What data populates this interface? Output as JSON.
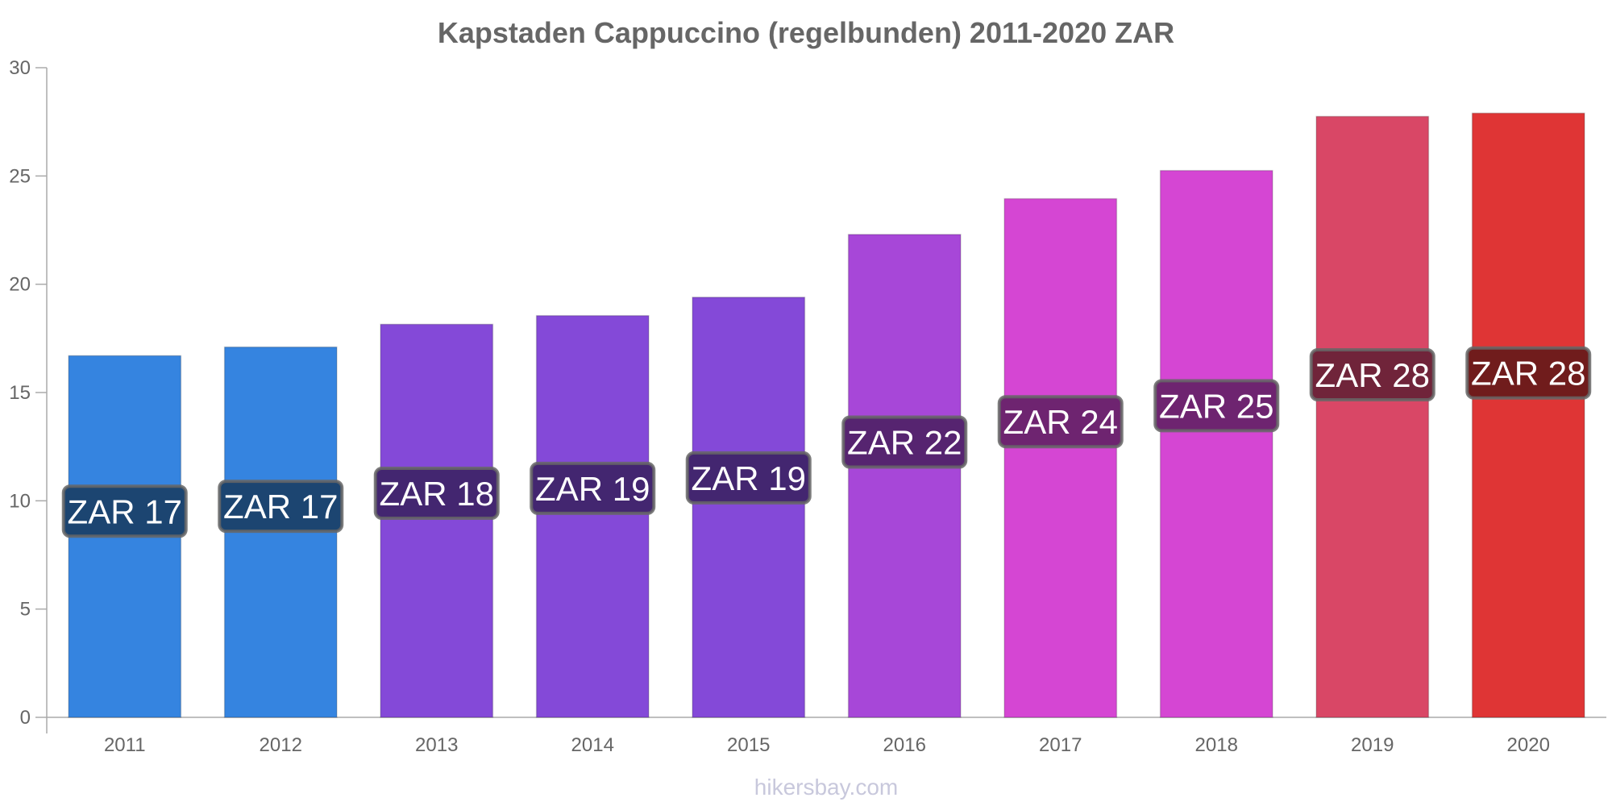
{
  "chart_data": {
    "type": "bar",
    "title": "Kapstaden Cappuccino (regelbunden) 2011-2020 ZAR",
    "xlabel": "",
    "ylabel": "",
    "ylim": [
      0,
      30
    ],
    "yticks": [
      0,
      5,
      10,
      15,
      20,
      25,
      30
    ],
    "categories": [
      "2011",
      "2012",
      "2013",
      "2014",
      "2015",
      "2016",
      "2017",
      "2018",
      "2019",
      "2020"
    ],
    "values": [
      16.7,
      17.1,
      18.15,
      18.55,
      19.4,
      22.3,
      23.95,
      25.25,
      27.75,
      27.9
    ],
    "data_labels": [
      "ZAR 17",
      "ZAR 17",
      "ZAR 18",
      "ZAR 19",
      "ZAR 19",
      "ZAR 22",
      "ZAR 24",
      "ZAR 25",
      "ZAR 28",
      "ZAR 28"
    ],
    "bar_colors": [
      "#3584e0",
      "#3584e0",
      "#8449d8",
      "#8449d8",
      "#8449d8",
      "#a747d8",
      "#d546d3",
      "#d546d3",
      "#d94766",
      "#df3535"
    ],
    "label_bg_colors": [
      "#1c4571",
      "#1c4571",
      "#432670",
      "#432670",
      "#432670",
      "#562470",
      "#6e2470",
      "#6e2470",
      "#70243a",
      "#701c1c"
    ],
    "grid": false,
    "legend": "none"
  },
  "watermark": "hikersbay.com"
}
